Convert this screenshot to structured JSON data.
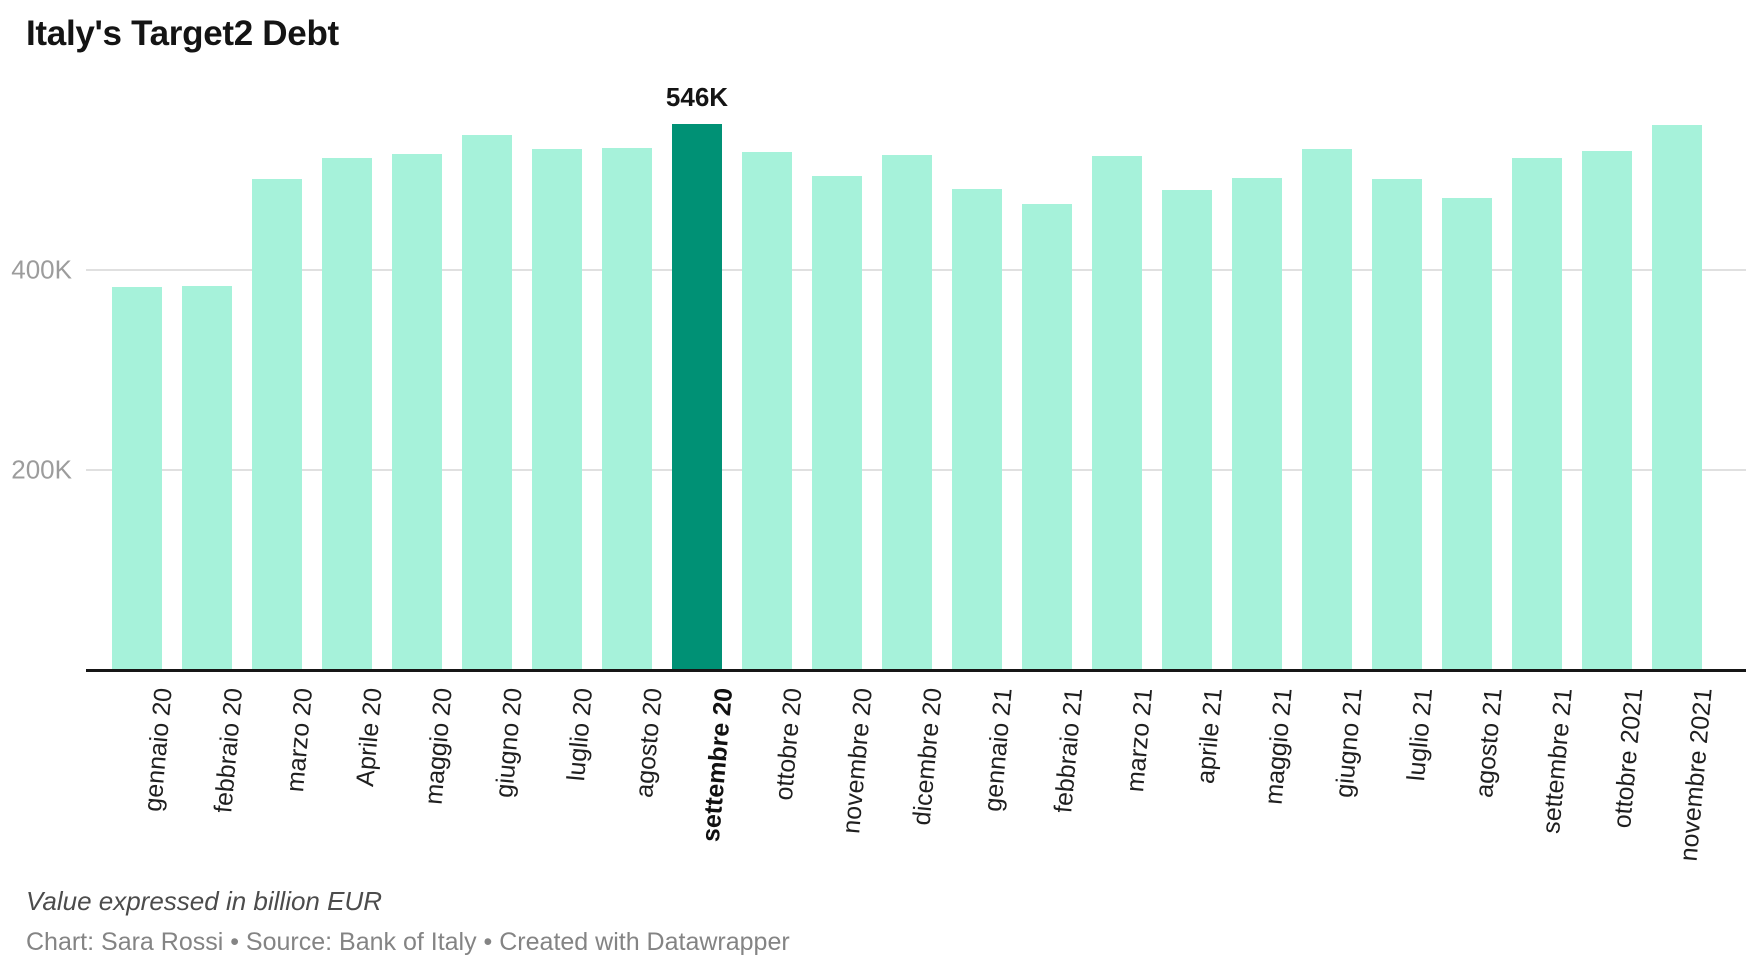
{
  "title": "Italy's Target2 Debt",
  "footer": {
    "note": "Value expressed in billion EUR",
    "byline": "Chart: Sara Rossi • Source: Bank of Italy • Created with Datawrapper"
  },
  "colors": {
    "bar": "#a6f2da",
    "highlight": "#009175",
    "gridline": "#e0e0e0",
    "axis": "#161616",
    "ytick_text": "#9c9c9c"
  },
  "chart_data": {
    "type": "bar",
    "title": "Italy's Target2 Debt",
    "unit_note": "Value expressed in billion EUR",
    "source": "Bank of Italy",
    "categories": [
      "gennaio 20",
      "febbraio 20",
      "marzo 20",
      "Aprile 20",
      "maggio 20",
      "giugno 20",
      "luglio 20",
      "agosto 20",
      "settembre 20",
      "ottobre 20",
      "novembre 20",
      "dicembre 20",
      "gennaio 21",
      "febbraio 21",
      "marzo 21",
      "aprile 21",
      "maggio 21",
      "giugno 21",
      "luglio 21",
      "agosto 21",
      "settembre 21",
      "ottobre 2021",
      "novembre 2021"
    ],
    "values": [
      383,
      384,
      491,
      512,
      516,
      535,
      521,
      522,
      546,
      518,
      494,
      515,
      481,
      466,
      514,
      480,
      492,
      521,
      491,
      472,
      512,
      519,
      545
    ],
    "highlight_index": 8,
    "highlight_label": "546K",
    "y_ticks": [
      {
        "label": "200K",
        "value": 200
      },
      {
        "label": "400K",
        "value": 400
      }
    ],
    "ylim": [
      0,
      670
    ],
    "xlabel": "",
    "ylabel": "",
    "grid": "horizontal",
    "legend": "none"
  }
}
